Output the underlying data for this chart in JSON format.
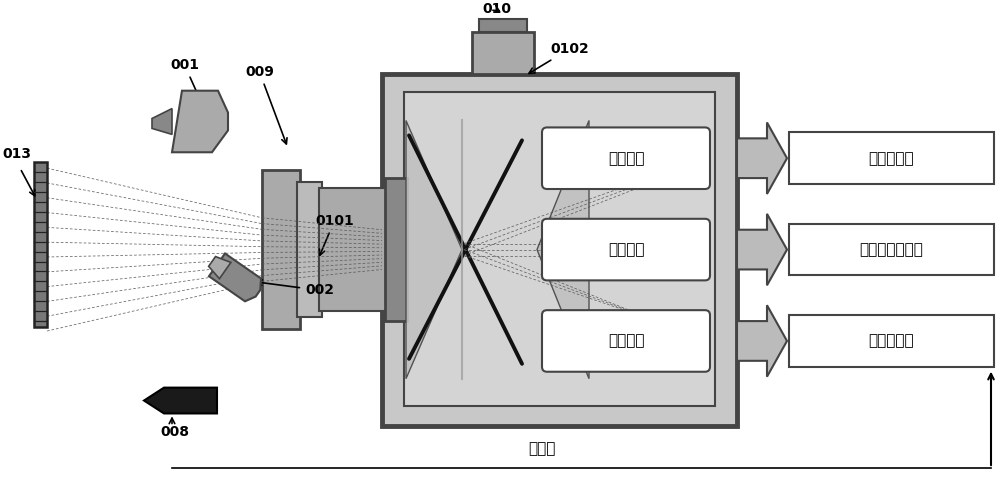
{
  "fig_width": 10.0,
  "fig_height": 4.78,
  "bg_color": "#ffffff",
  "gray_dark": "#444444",
  "gray_mid": "#888888",
  "gray_light": "#aaaaaa",
  "gray_lighter": "#bbbbbb",
  "gray_box": "#c8c8c8",
  "gray_inner": "#d4d4d4",
  "channel_labels": [
    "蓝光通道",
    "绿光通道",
    "红光通道"
  ],
  "output_labels": [
    "确定变形场",
    "确定离面位移场",
    "确定温度场"
  ],
  "ref_label": "参考点",
  "label_001": "001",
  "label_009": "009",
  "label_010": "010",
  "label_0102": "0102",
  "label_013": "013",
  "label_0101": "0101",
  "label_002": "002",
  "label_008": "008"
}
